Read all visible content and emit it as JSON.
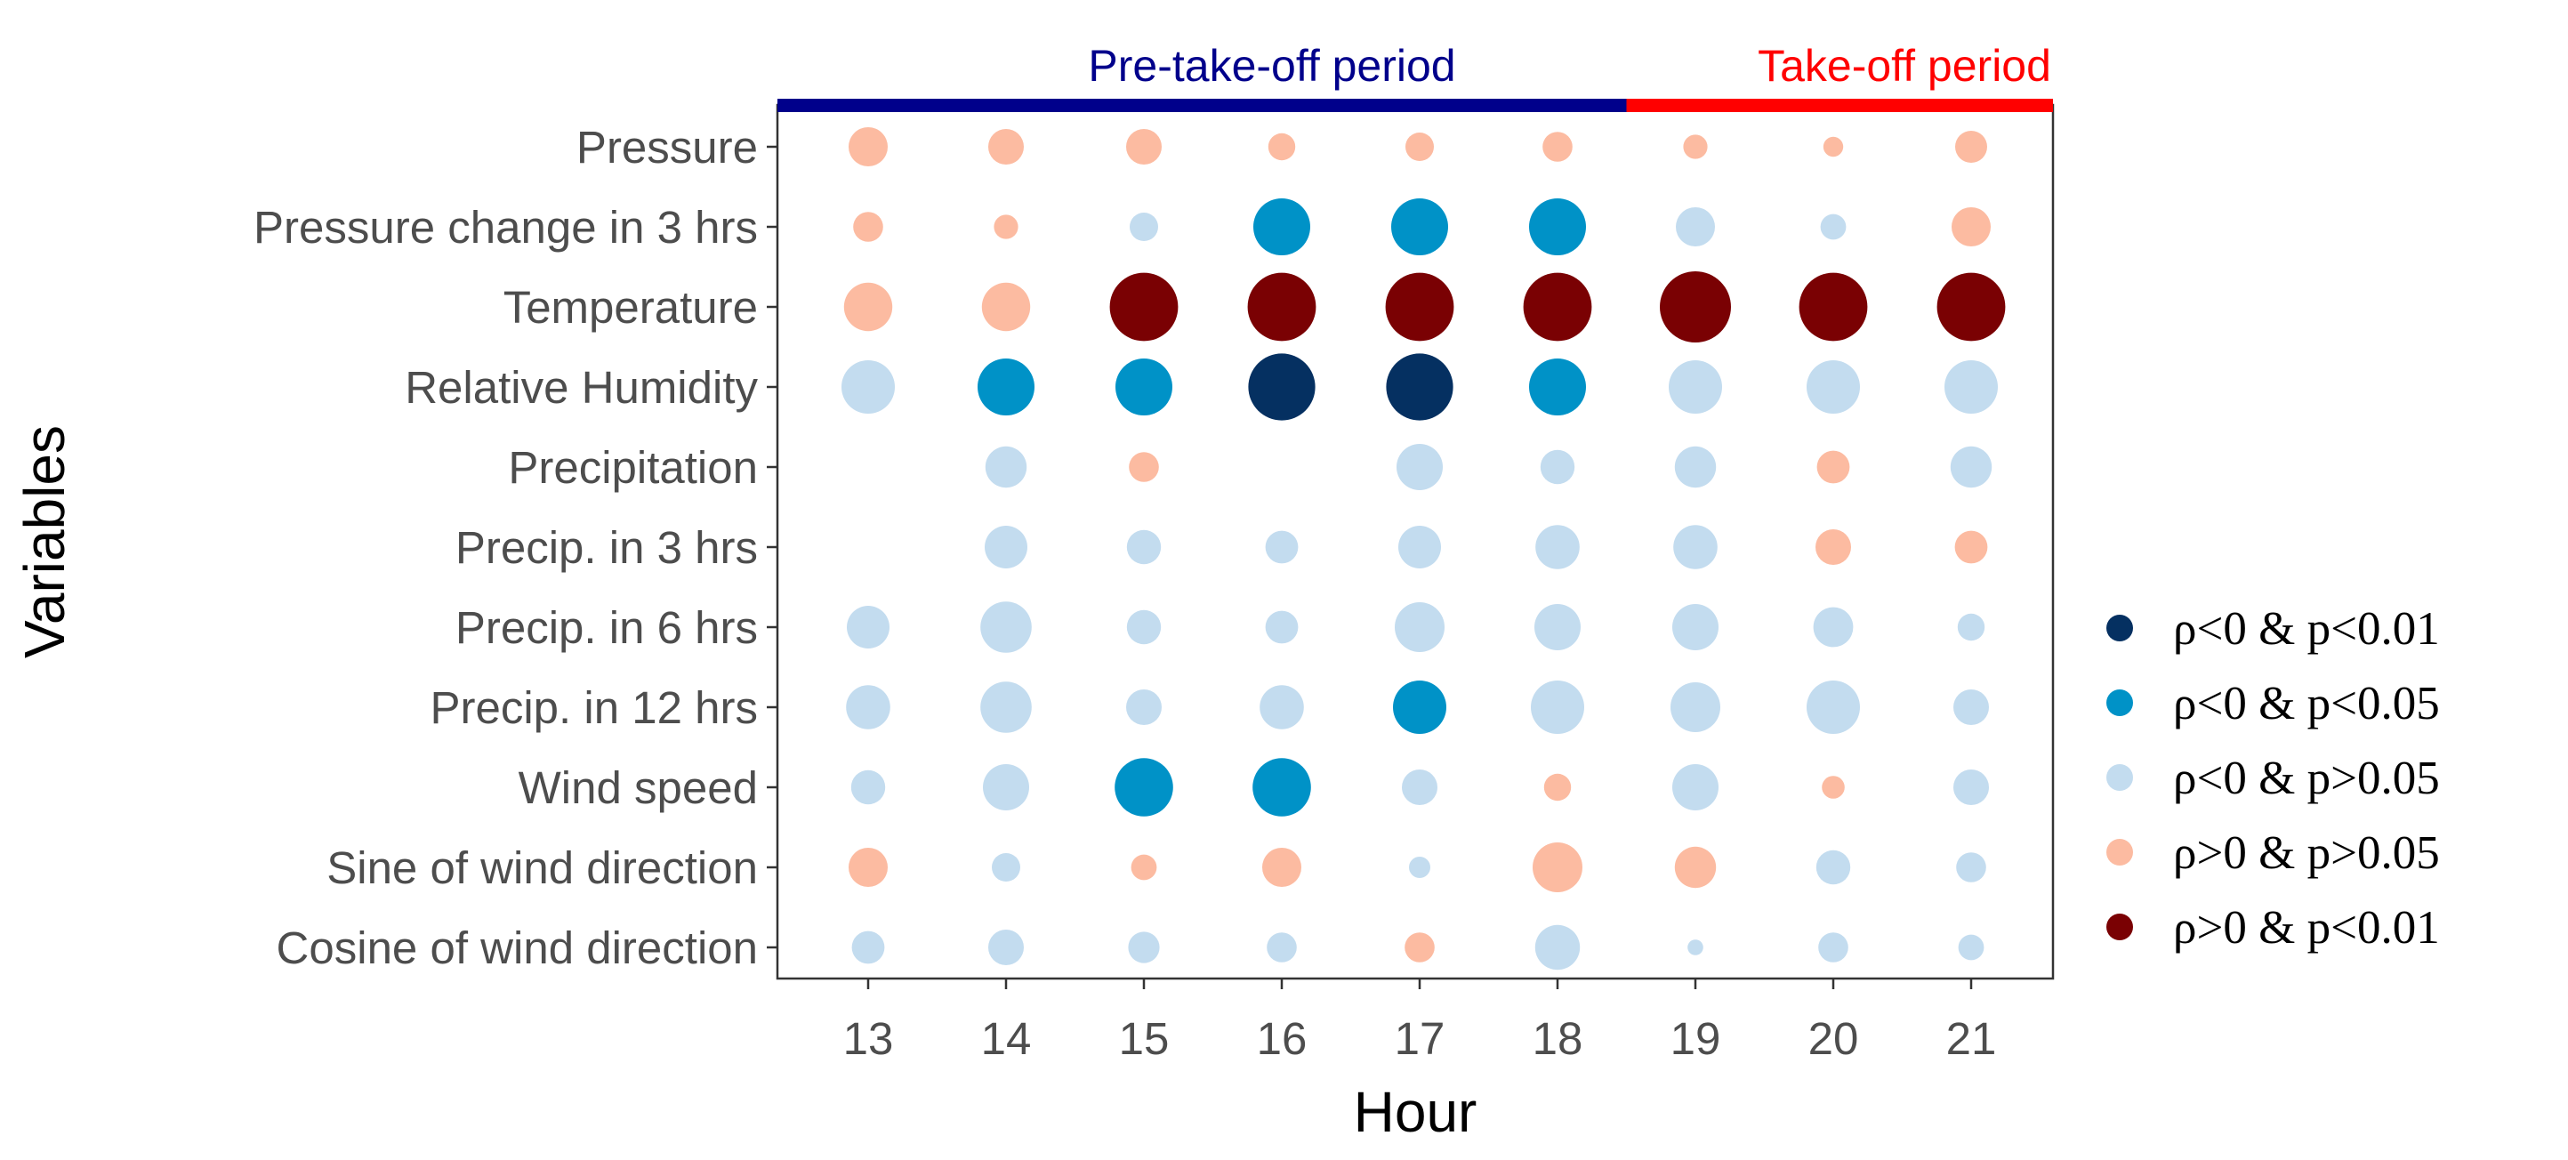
{
  "chart_data": {
    "type": "bubble-matrix",
    "xlabel": "Hour",
    "ylabel": "Variables",
    "x": [
      "13",
      "14",
      "15",
      "16",
      "17",
      "18",
      "19",
      "20",
      "21"
    ],
    "variables": [
      "Pressure",
      "Pressure change in 3 hrs",
      "Temperature",
      "Relative Humidity",
      "Precipitation",
      "Precip. in 3 hrs",
      "Precip. in 6 hrs",
      "Precip. in 12 hrs",
      "Wind speed",
      "Sine of wind direction",
      "Cosine of wind direction"
    ],
    "periods": [
      {
        "label": "Pre-take-off period",
        "from": "13",
        "to": "18",
        "color": "#00008B"
      },
      {
        "label": "Take-off period",
        "from": "19",
        "to": "21",
        "color": "#FF0000"
      }
    ],
    "categories": [
      {
        "key": "nd",
        "label": "ρ<0 & p<0.01",
        "color": "#053061"
      },
      {
        "key": "nm",
        "label": "ρ<0 & p<0.05",
        "color": "#0092C7"
      },
      {
        "key": "nl",
        "label": "ρ<0 & p>0.05",
        "color": "#C3DCEF"
      },
      {
        "key": "pl",
        "label": "ρ>0 & p>0.05",
        "color": "#FCBBA1"
      },
      {
        "key": "pd",
        "label": "ρ>0 & p<0.01",
        "color": "#7A0103"
      }
    ],
    "size_scale_note": "circle size reflects |ρ| (relative magnitude 0–1)",
    "points": [
      {
        "var": "Pressure",
        "hour": "13",
        "cat": "pl",
        "mag": 0.55
      },
      {
        "var": "Pressure",
        "hour": "14",
        "cat": "pl",
        "mag": 0.5
      },
      {
        "var": "Pressure",
        "hour": "15",
        "cat": "pl",
        "mag": 0.5
      },
      {
        "var": "Pressure",
        "hour": "16",
        "cat": "pl",
        "mag": 0.38
      },
      {
        "var": "Pressure",
        "hour": "17",
        "cat": "pl",
        "mag": 0.4
      },
      {
        "var": "Pressure",
        "hour": "18",
        "cat": "pl",
        "mag": 0.42
      },
      {
        "var": "Pressure",
        "hour": "19",
        "cat": "pl",
        "mag": 0.34
      },
      {
        "var": "Pressure",
        "hour": "20",
        "cat": "pl",
        "mag": 0.28
      },
      {
        "var": "Pressure",
        "hour": "21",
        "cat": "pl",
        "mag": 0.45
      },
      {
        "var": "Pressure change in 3 hrs",
        "hour": "13",
        "cat": "pl",
        "mag": 0.42
      },
      {
        "var": "Pressure change in 3 hrs",
        "hour": "14",
        "cat": "pl",
        "mag": 0.34
      },
      {
        "var": "Pressure change in 3 hrs",
        "hour": "15",
        "cat": "nl",
        "mag": 0.4
      },
      {
        "var": "Pressure change in 3 hrs",
        "hour": "16",
        "cat": "nm",
        "mag": 0.8
      },
      {
        "var": "Pressure change in 3 hrs",
        "hour": "17",
        "cat": "nm",
        "mag": 0.8
      },
      {
        "var": "Pressure change in 3 hrs",
        "hour": "18",
        "cat": "nm",
        "mag": 0.8
      },
      {
        "var": "Pressure change in 3 hrs",
        "hour": "19",
        "cat": "nl",
        "mag": 0.55
      },
      {
        "var": "Pressure change in 3 hrs",
        "hour": "20",
        "cat": "nl",
        "mag": 0.36
      },
      {
        "var": "Pressure change in 3 hrs",
        "hour": "21",
        "cat": "pl",
        "mag": 0.55
      },
      {
        "var": "Temperature",
        "hour": "13",
        "cat": "pl",
        "mag": 0.68
      },
      {
        "var": "Temperature",
        "hour": "14",
        "cat": "pl",
        "mag": 0.68
      },
      {
        "var": "Temperature",
        "hour": "15",
        "cat": "pd",
        "mag": 0.96
      },
      {
        "var": "Temperature",
        "hour": "16",
        "cat": "pd",
        "mag": 0.96
      },
      {
        "var": "Temperature",
        "hour": "17",
        "cat": "pd",
        "mag": 0.96
      },
      {
        "var": "Temperature",
        "hour": "18",
        "cat": "pd",
        "mag": 0.96
      },
      {
        "var": "Temperature",
        "hour": "19",
        "cat": "pd",
        "mag": 1.0
      },
      {
        "var": "Temperature",
        "hour": "20",
        "cat": "pd",
        "mag": 0.96
      },
      {
        "var": "Temperature",
        "hour": "21",
        "cat": "pd",
        "mag": 0.96
      },
      {
        "var": "Relative Humidity",
        "hour": "13",
        "cat": "nl",
        "mag": 0.75
      },
      {
        "var": "Relative Humidity",
        "hour": "14",
        "cat": "nm",
        "mag": 0.8
      },
      {
        "var": "Relative Humidity",
        "hour": "15",
        "cat": "nm",
        "mag": 0.8
      },
      {
        "var": "Relative Humidity",
        "hour": "16",
        "cat": "nd",
        "mag": 0.94
      },
      {
        "var": "Relative Humidity",
        "hour": "17",
        "cat": "nd",
        "mag": 0.94
      },
      {
        "var": "Relative Humidity",
        "hour": "18",
        "cat": "nm",
        "mag": 0.8
      },
      {
        "var": "Relative Humidity",
        "hour": "19",
        "cat": "nl",
        "mag": 0.75
      },
      {
        "var": "Relative Humidity",
        "hour": "20",
        "cat": "nl",
        "mag": 0.75
      },
      {
        "var": "Relative Humidity",
        "hour": "21",
        "cat": "nl",
        "mag": 0.75
      },
      {
        "var": "Precipitation",
        "hour": "14",
        "cat": "nl",
        "mag": 0.58
      },
      {
        "var": "Precipitation",
        "hour": "15",
        "cat": "pl",
        "mag": 0.42
      },
      {
        "var": "Precipitation",
        "hour": "17",
        "cat": "nl",
        "mag": 0.65
      },
      {
        "var": "Precipitation",
        "hour": "18",
        "cat": "nl",
        "mag": 0.48
      },
      {
        "var": "Precipitation",
        "hour": "19",
        "cat": "nl",
        "mag": 0.58
      },
      {
        "var": "Precipitation",
        "hour": "20",
        "cat": "pl",
        "mag": 0.46
      },
      {
        "var": "Precipitation",
        "hour": "21",
        "cat": "nl",
        "mag": 0.58
      },
      {
        "var": "Precip. in 3 hrs",
        "hour": "14",
        "cat": "nl",
        "mag": 0.6
      },
      {
        "var": "Precip. in 3 hrs",
        "hour": "15",
        "cat": "nl",
        "mag": 0.48
      },
      {
        "var": "Precip. in 3 hrs",
        "hour": "16",
        "cat": "nl",
        "mag": 0.46
      },
      {
        "var": "Precip. in 3 hrs",
        "hour": "17",
        "cat": "nl",
        "mag": 0.6
      },
      {
        "var": "Precip. in 3 hrs",
        "hour": "18",
        "cat": "nl",
        "mag": 0.62
      },
      {
        "var": "Precip. in 3 hrs",
        "hour": "19",
        "cat": "nl",
        "mag": 0.62
      },
      {
        "var": "Precip. in 3 hrs",
        "hour": "20",
        "cat": "pl",
        "mag": 0.5
      },
      {
        "var": "Precip. in 3 hrs",
        "hour": "21",
        "cat": "pl",
        "mag": 0.46
      },
      {
        "var": "Precip. in 6 hrs",
        "hour": "13",
        "cat": "nl",
        "mag": 0.6
      },
      {
        "var": "Precip. in 6 hrs",
        "hour": "14",
        "cat": "nl",
        "mag": 0.72
      },
      {
        "var": "Precip. in 6 hrs",
        "hour": "15",
        "cat": "nl",
        "mag": 0.48
      },
      {
        "var": "Precip. in 6 hrs",
        "hour": "16",
        "cat": "nl",
        "mag": 0.46
      },
      {
        "var": "Precip. in 6 hrs",
        "hour": "17",
        "cat": "nl",
        "mag": 0.7
      },
      {
        "var": "Precip. in 6 hrs",
        "hour": "18",
        "cat": "nl",
        "mag": 0.65
      },
      {
        "var": "Precip. in 6 hrs",
        "hour": "19",
        "cat": "nl",
        "mag": 0.65
      },
      {
        "var": "Precip. in 6 hrs",
        "hour": "20",
        "cat": "nl",
        "mag": 0.56
      },
      {
        "var": "Precip. in 6 hrs",
        "hour": "21",
        "cat": "nl",
        "mag": 0.38
      },
      {
        "var": "Precip. in 12 hrs",
        "hour": "13",
        "cat": "nl",
        "mag": 0.62
      },
      {
        "var": "Precip. in 12 hrs",
        "hour": "14",
        "cat": "nl",
        "mag": 0.72
      },
      {
        "var": "Precip. in 12 hrs",
        "hour": "15",
        "cat": "nl",
        "mag": 0.5
      },
      {
        "var": "Precip. in 12 hrs",
        "hour": "16",
        "cat": "nl",
        "mag": 0.62
      },
      {
        "var": "Precip. in 12 hrs",
        "hour": "17",
        "cat": "nm",
        "mag": 0.75
      },
      {
        "var": "Precip. in 12 hrs",
        "hour": "18",
        "cat": "nl",
        "mag": 0.75
      },
      {
        "var": "Precip. in 12 hrs",
        "hour": "19",
        "cat": "nl",
        "mag": 0.7
      },
      {
        "var": "Precip. in 12 hrs",
        "hour": "20",
        "cat": "nl",
        "mag": 0.75
      },
      {
        "var": "Precip. in 12 hrs",
        "hour": "21",
        "cat": "nl",
        "mag": 0.5
      },
      {
        "var": "Wind speed",
        "hour": "13",
        "cat": "nl",
        "mag": 0.48
      },
      {
        "var": "Wind speed",
        "hour": "14",
        "cat": "nl",
        "mag": 0.65
      },
      {
        "var": "Wind speed",
        "hour": "15",
        "cat": "nm",
        "mag": 0.82
      },
      {
        "var": "Wind speed",
        "hour": "16",
        "cat": "nm",
        "mag": 0.82
      },
      {
        "var": "Wind speed",
        "hour": "17",
        "cat": "nl",
        "mag": 0.5
      },
      {
        "var": "Wind speed",
        "hour": "18",
        "cat": "pl",
        "mag": 0.38
      },
      {
        "var": "Wind speed",
        "hour": "19",
        "cat": "nl",
        "mag": 0.65
      },
      {
        "var": "Wind speed",
        "hour": "20",
        "cat": "pl",
        "mag": 0.32
      },
      {
        "var": "Wind speed",
        "hour": "21",
        "cat": "nl",
        "mag": 0.5
      },
      {
        "var": "Sine of wind direction",
        "hour": "13",
        "cat": "pl",
        "mag": 0.55
      },
      {
        "var": "Sine of wind direction",
        "hour": "14",
        "cat": "nl",
        "mag": 0.4
      },
      {
        "var": "Sine of wind direction",
        "hour": "15",
        "cat": "pl",
        "mag": 0.36
      },
      {
        "var": "Sine of wind direction",
        "hour": "16",
        "cat": "pl",
        "mag": 0.55
      },
      {
        "var": "Sine of wind direction",
        "hour": "17",
        "cat": "nl",
        "mag": 0.3
      },
      {
        "var": "Sine of wind direction",
        "hour": "18",
        "cat": "pl",
        "mag": 0.7
      },
      {
        "var": "Sine of wind direction",
        "hour": "19",
        "cat": "pl",
        "mag": 0.58
      },
      {
        "var": "Sine of wind direction",
        "hour": "20",
        "cat": "nl",
        "mag": 0.48
      },
      {
        "var": "Sine of wind direction",
        "hour": "21",
        "cat": "nl",
        "mag": 0.42
      },
      {
        "var": "Cosine of wind direction",
        "hour": "13",
        "cat": "nl",
        "mag": 0.46
      },
      {
        "var": "Cosine of wind direction",
        "hour": "14",
        "cat": "nl",
        "mag": 0.5
      },
      {
        "var": "Cosine of wind direction",
        "hour": "15",
        "cat": "nl",
        "mag": 0.44
      },
      {
        "var": "Cosine of wind direction",
        "hour": "16",
        "cat": "nl",
        "mag": 0.42
      },
      {
        "var": "Cosine of wind direction",
        "hour": "17",
        "cat": "pl",
        "mag": 0.42
      },
      {
        "var": "Cosine of wind direction",
        "hour": "18",
        "cat": "nl",
        "mag": 0.63
      },
      {
        "var": "Cosine of wind direction",
        "hour": "19",
        "cat": "nl",
        "mag": 0.22
      },
      {
        "var": "Cosine of wind direction",
        "hour": "20",
        "cat": "nl",
        "mag": 0.42
      },
      {
        "var": "Cosine of wind direction",
        "hour": "21",
        "cat": "nl",
        "mag": 0.36
      }
    ]
  }
}
